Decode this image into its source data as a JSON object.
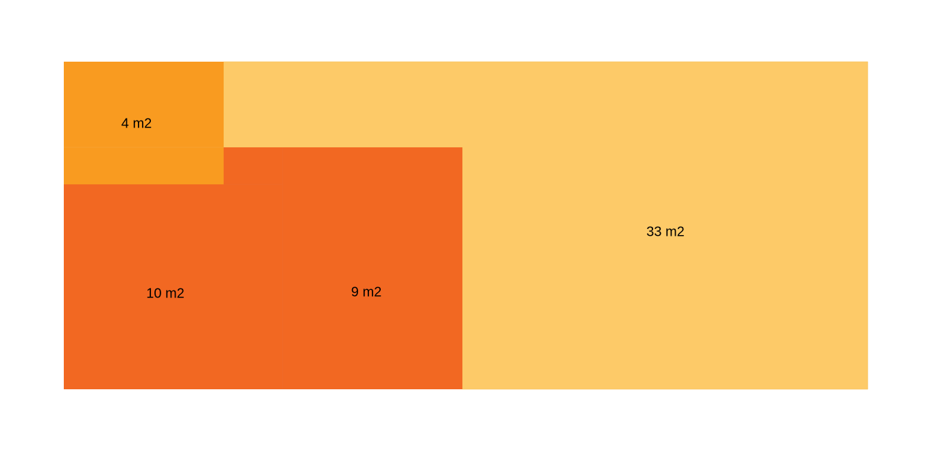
{
  "rooms": [
    {
      "label": "4 m2"
    },
    {
      "label": "10 m2"
    },
    {
      "label": "9 m2"
    },
    {
      "label": "33 m2"
    }
  ]
}
